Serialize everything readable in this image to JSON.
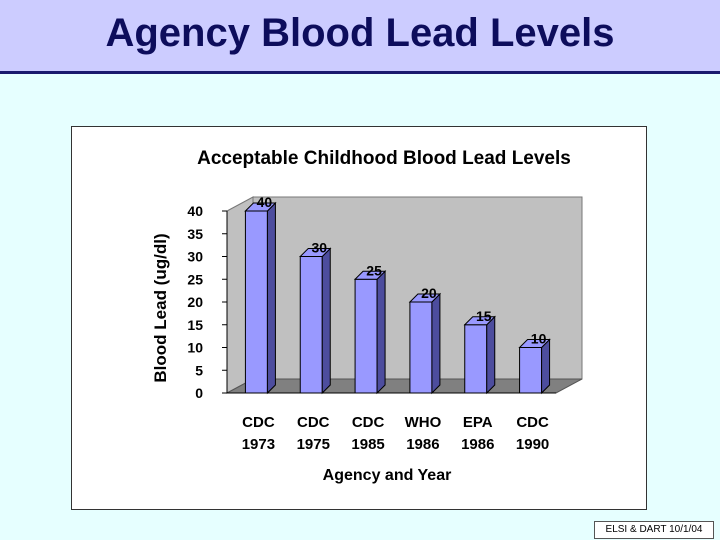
{
  "slide": {
    "title": "Agency Blood Lead Levels",
    "footer": "ELSI & DART 10/1/04"
  },
  "colors": {
    "background": "#e6ffff",
    "title_bar": "#ccccff",
    "bar_front": "#9999ff",
    "bar_side": "#4d4d9e",
    "wall": "#c0c0c0",
    "floor": "#808080"
  },
  "chart_data": {
    "type": "bar",
    "title": "Acceptable Childhood Blood Lead Levels",
    "xlabel": "Agency and Year",
    "ylabel": "Blood Lead (ug/dl)",
    "categories": [
      [
        "CDC",
        "1973"
      ],
      [
        "CDC",
        "1975"
      ],
      [
        "CDC",
        "1985"
      ],
      [
        "WHO",
        "1986"
      ],
      [
        "EPA",
        "1986"
      ],
      [
        "CDC",
        "1990"
      ]
    ],
    "values": [
      40,
      30,
      25,
      20,
      15,
      10
    ],
    "data_labels": [
      "40",
      "30",
      "25",
      "20",
      "15",
      "10"
    ],
    "yticks": [
      0,
      5,
      10,
      15,
      20,
      25,
      30,
      35,
      40
    ],
    "ylim": [
      0,
      40
    ],
    "legend": "none",
    "grid": false,
    "style": "3d"
  }
}
